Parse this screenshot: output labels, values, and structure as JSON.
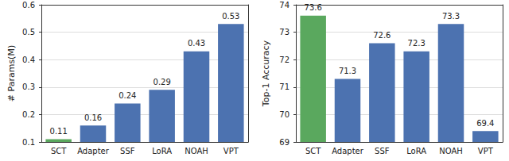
{
  "chart_data": [
    {
      "type": "bar",
      "y_label": "# Params(M)",
      "categories": [
        "SCT",
        "Adapter",
        "SSF",
        "LoRA",
        "NOAH",
        "VPT"
      ],
      "values": [
        0.11,
        0.16,
        0.24,
        0.29,
        0.43,
        0.53
      ],
      "colors": [
        "#5aa85e",
        "#4c72b0",
        "#4c72b0",
        "#4c72b0",
        "#4c72b0",
        "#4c72b0"
      ],
      "ylim": [
        0.1,
        0.6
      ],
      "yticks": [
        0.1,
        0.2,
        0.3,
        0.4,
        0.5,
        0.6
      ],
      "grid": true,
      "data_labels": true
    },
    {
      "type": "bar",
      "y_label": "Top-1 Accuracy",
      "categories": [
        "SCT",
        "Adapter",
        "SSF",
        "LoRA",
        "NOAH",
        "VPT"
      ],
      "values": [
        73.6,
        71.3,
        72.6,
        72.3,
        73.3,
        69.4
      ],
      "colors": [
        "#5aa85e",
        "#4c72b0",
        "#4c72b0",
        "#4c72b0",
        "#4c72b0",
        "#4c72b0"
      ],
      "ylim": [
        69,
        74
      ],
      "yticks": [
        69,
        70,
        71,
        72,
        73,
        74
      ],
      "grid": true,
      "data_labels": true
    }
  ]
}
